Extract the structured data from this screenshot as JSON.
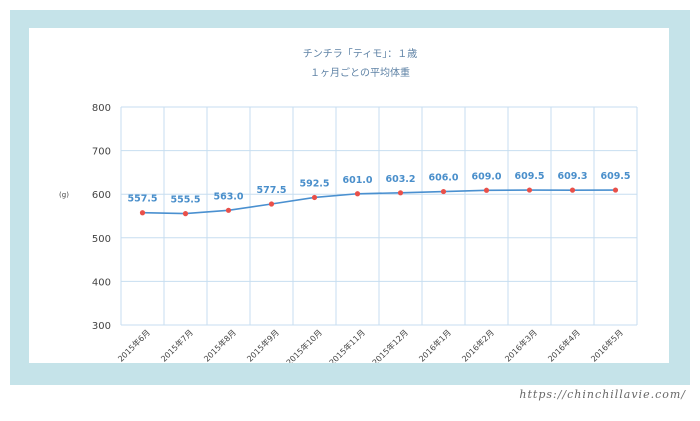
{
  "chart_data": {
    "type": "line",
    "title": "チンチラ「ティモ」：１歳",
    "subtitle": "１ヶ月ごとの平均体重",
    "ylabel": "(g)",
    "xlabel": "",
    "ylim": [
      300,
      800
    ],
    "yticks": [
      300,
      400,
      500,
      600,
      700,
      800
    ],
    "grid": true,
    "categories": [
      "2015年6月",
      "2015年7月",
      "2015年8月",
      "2015年9月",
      "2015年10月",
      "2015年11月",
      "2015年12月",
      "2016年1月",
      "2016年2月",
      "2016年3月",
      "2016年4月",
      "2016年5月"
    ],
    "series": [
      {
        "name": "平均体重",
        "values": [
          557.5,
          555.5,
          563.0,
          577.5,
          592.5,
          601.0,
          603.2,
          606.0,
          609.0,
          609.5,
          609.3,
          609.5
        ],
        "labels": [
          "557.5",
          "555.5",
          "563.0",
          "577.5",
          "592.5",
          "601.0",
          "603.2",
          "606.0",
          "609.0",
          "609.5",
          "609.3",
          "609.5"
        ],
        "line_color": "#4a90d0",
        "marker_color": "#e8504a"
      }
    ]
  },
  "colors": {
    "frame": "#c5e3e9",
    "grid": "#c7def0",
    "title": "#5f83a6",
    "label": "#4a8fcb"
  },
  "footer": {
    "url": "https://chinchillavie.com/"
  }
}
